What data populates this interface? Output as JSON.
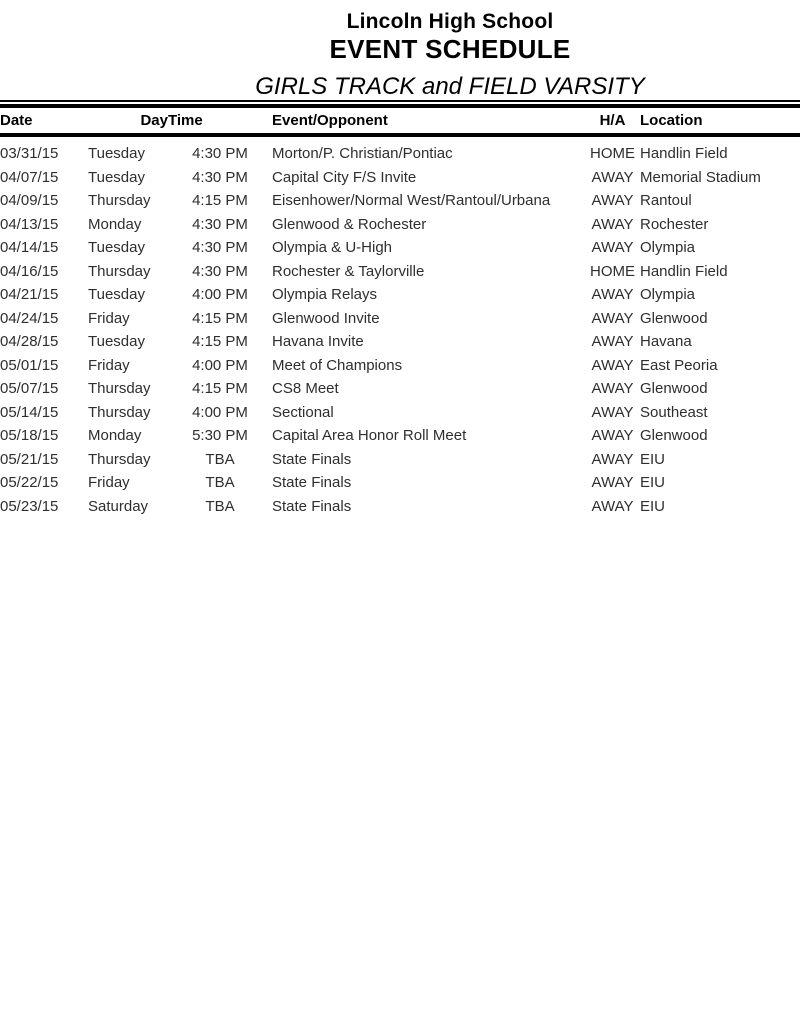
{
  "header": {
    "school_name": "Lincoln High School",
    "title": "EVENT SCHEDULE",
    "subtitle": "GIRLS TRACK and FIELD VARSITY"
  },
  "table": {
    "columns": [
      "Date",
      "Day",
      "Time",
      "Event/Opponent",
      "H/A",
      "Location"
    ],
    "rows": [
      [
        "03/31/15",
        "Tuesday",
        "4:30 PM",
        "Morton/P. Christian/Pontiac",
        "HOME",
        "Handlin Field"
      ],
      [
        "04/07/15",
        "Tuesday",
        "4:30 PM",
        "Capital City F/S Invite",
        "AWAY",
        "Memorial Stadium"
      ],
      [
        "04/09/15",
        "Thursday",
        "4:15 PM",
        "Eisenhower/Normal West/Rantoul/Urbana",
        "AWAY",
        "Rantoul"
      ],
      [
        "04/13/15",
        "Monday",
        "4:30 PM",
        "Glenwood & Rochester",
        "AWAY",
        "Rochester"
      ],
      [
        "04/14/15",
        "Tuesday",
        "4:30 PM",
        "Olympia & U-High",
        "AWAY",
        "Olympia"
      ],
      [
        "04/16/15",
        "Thursday",
        "4:30 PM",
        "Rochester & Taylorville",
        "HOME",
        "Handlin Field"
      ],
      [
        "04/21/15",
        "Tuesday",
        "4:00 PM",
        "Olympia Relays",
        "AWAY",
        "Olympia"
      ],
      [
        "04/24/15",
        "Friday",
        "4:15 PM",
        "Glenwood Invite",
        "AWAY",
        "Glenwood"
      ],
      [
        "04/28/15",
        "Tuesday",
        "4:15 PM",
        "Havana Invite",
        "AWAY",
        "Havana"
      ],
      [
        "05/01/15",
        "Friday",
        "4:00 PM",
        "Meet of Champions",
        "AWAY",
        "East Peoria"
      ],
      [
        "05/07/15",
        "Thursday",
        "4:15 PM",
        "CS8 Meet",
        "AWAY",
        "Glenwood"
      ],
      [
        "05/14/15",
        "Thursday",
        "4:00 PM",
        "Sectional",
        "AWAY",
        "Southeast"
      ],
      [
        "05/18/15",
        "Monday",
        "5:30 PM",
        "Capital Area Honor Roll Meet",
        "AWAY",
        "Glenwood"
      ],
      [
        "05/21/15",
        "Thursday",
        "TBA",
        "State Finals",
        "AWAY",
        "EIU"
      ],
      [
        "05/22/15",
        "Friday",
        "TBA",
        "State Finals",
        "AWAY",
        "EIU"
      ],
      [
        "05/23/15",
        "Saturday",
        "TBA",
        "State Finals",
        "AWAY",
        "EIU"
      ]
    ]
  },
  "colors": {
    "background": "#ffffff",
    "heading_text": "#000000",
    "body_text": "#2e2e2e",
    "rule": "#000000"
  }
}
